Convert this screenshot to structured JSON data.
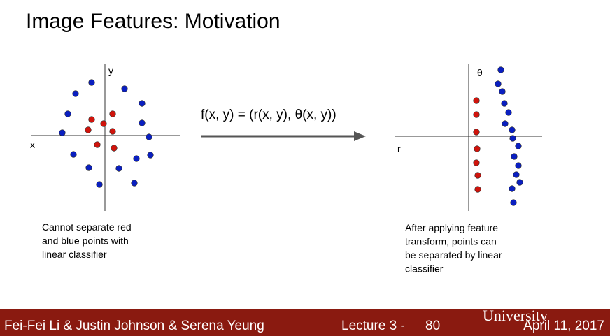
{
  "title": "Image Features: Motivation",
  "formula": "f(x, y) = (r(x, y), θ(x, y))",
  "left_plot": {
    "x_label": "x",
    "y_label": "y",
    "caption": [
      "Cannot separate red",
      "and blue points with",
      "linear classifier"
    ]
  },
  "right_plot": {
    "x_label": "r",
    "y_label": "θ",
    "caption": [
      "After applying feature",
      "transform, points can",
      "be separated by linear",
      "classifier"
    ]
  },
  "footer": {
    "authors": "Fei-Fei Li & Justin Johnson & Serena Yeung",
    "lecture": "Lecture 3 -",
    "page": "80",
    "date": "April 11, 2017",
    "logo": "University"
  }
}
